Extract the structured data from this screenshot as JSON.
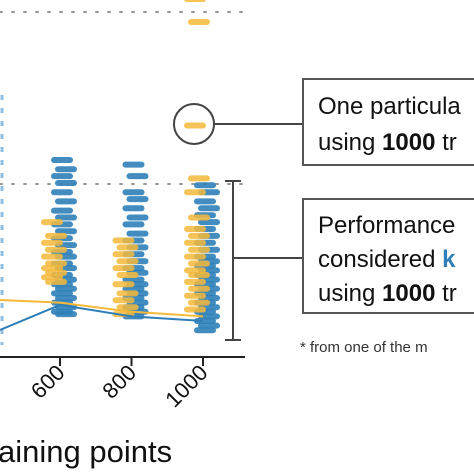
{
  "colors": {
    "blue": "#2e7fb8",
    "yellow": "#f5b93a",
    "light_blue": "#8fbfe0",
    "gray": "#444444",
    "dotted": "#999999"
  },
  "chart_data": {
    "type": "scatter",
    "title": "",
    "xlabel_visible": "aining points",
    "ylabel": "",
    "x_ticks": [
      "600",
      "800",
      "1000"
    ],
    "grid": false,
    "legend": "none",
    "series": [
      {
        "color": "blue",
        "x": [
          600,
          800,
          1000
        ],
        "points": [
          [
            0.8,
            0.76,
            0.73,
            0.7,
            0.66,
            0.62,
            0.58,
            0.55,
            0.52,
            0.49,
            0.46,
            0.43,
            0.4,
            0.38,
            0.35,
            0.33,
            0.3,
            0.28,
            0.26,
            0.24,
            0.22,
            0.2,
            0.18,
            0.16,
            0.14,
            0.13
          ],
          [
            0.78,
            0.73,
            0.66,
            0.63,
            0.59,
            0.55,
            0.52,
            0.48,
            0.45,
            0.42,
            0.39,
            0.36,
            0.33,
            0.31,
            0.28,
            0.26,
            0.24,
            0.22,
            0.2,
            0.18,
            0.16,
            0.14,
            0.12
          ],
          [
            0.69,
            0.66,
            0.62,
            0.59,
            0.56,
            0.53,
            0.5,
            0.47,
            0.44,
            0.41,
            0.38,
            0.36,
            0.34,
            0.32,
            0.3,
            0.28,
            0.26,
            0.24,
            0.22,
            0.2,
            0.18,
            0.16,
            0.14,
            0.12,
            0.1,
            0.08,
            0.06
          ]
        ]
      },
      {
        "color": "yellow",
        "x": [
          600,
          800,
          1000
        ],
        "points": [
          [
            0.53,
            0.47,
            0.44,
            0.41,
            0.38,
            0.35,
            0.33,
            0.31,
            0.29,
            0.27
          ],
          [
            0.45,
            0.42,
            0.39,
            0.36,
            0.33,
            0.3,
            0.26,
            0.22,
            0.19,
            0.16,
            0.13
          ],
          [
            1.5,
            1.4,
            0.95,
            0.72,
            0.66,
            0.55,
            0.5,
            0.47,
            0.44,
            0.41,
            0.38,
            0.35,
            0.32,
            0.3,
            0.27,
            0.24,
            0.21,
            0.18,
            0.15
          ]
        ]
      },
      {
        "color": "blue",
        "line": true,
        "x": [
          600,
          800,
          1000
        ],
        "y": [
          0.17,
          0.12,
          0.1
        ]
      },
      {
        "color": "yellow",
        "line": true,
        "x": [
          600,
          800,
          1000
        ],
        "y": [
          0.18,
          0.14,
          0.12
        ]
      }
    ]
  },
  "annotations": {
    "box1_line1": "One particula",
    "box1_line2_bold": "1000",
    "box1_line2_pre": "using ",
    "box1_line2_post": " tr",
    "box2_line1": "Performance",
    "box2_line2_pre": "considered ",
    "box2_line2_hl": "k",
    "box2_line3_pre": "using ",
    "box2_line3_bold": "1000",
    "box2_line3_post": " tr",
    "footnote": "* from one of the m"
  }
}
